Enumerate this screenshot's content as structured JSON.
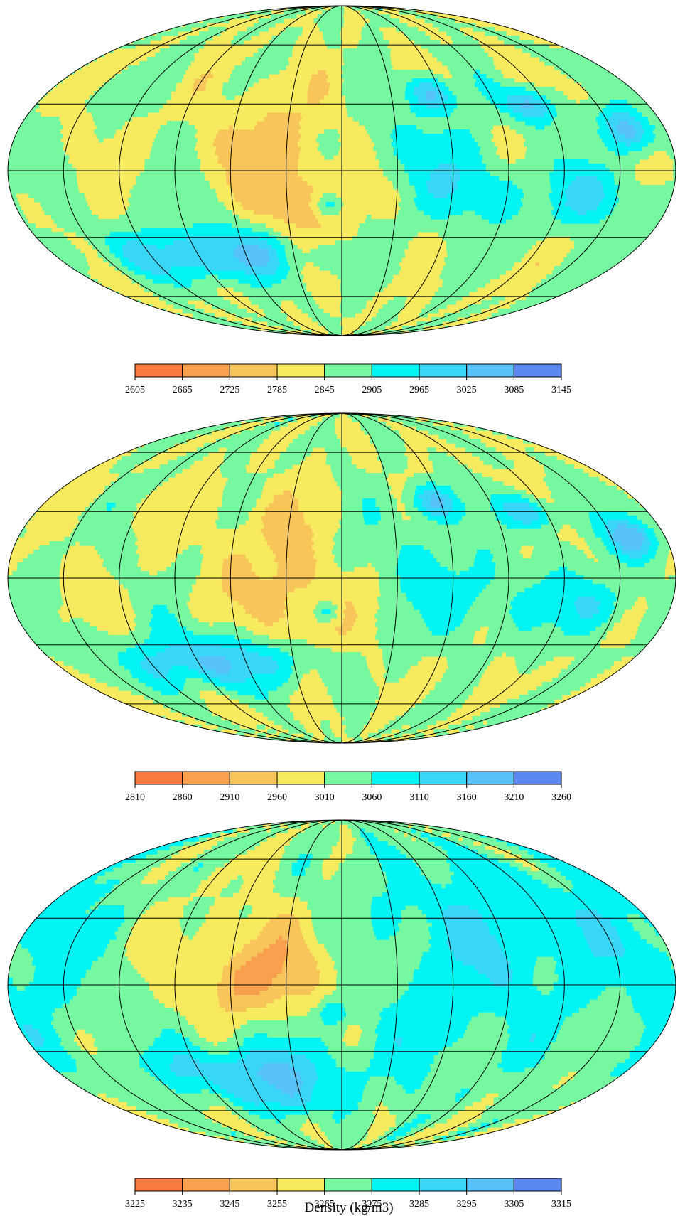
{
  "colors": [
    "#f87a3f",
    "#f8a04d",
    "#f8c55a",
    "#f8ea5e",
    "#76f8a0",
    "#00f4f4",
    "#3ad6f8",
    "#56c2f8",
    "#5a88f0"
  ],
  "outline_color": "#000000",
  "panels": [
    {
      "ticks": [
        "2605",
        "2665",
        "2725",
        "2785",
        "2845",
        "2905",
        "2965",
        "3025",
        "3085",
        "3145"
      ],
      "blobs": [
        {
          "lon": -40,
          "lat": 20,
          "sx": 25,
          "sy": 15,
          "a": 0.7
        },
        {
          "lon": -25,
          "lat": -20,
          "sx": 20,
          "sy": 12,
          "a": 1.1
        },
        {
          "lon": -30,
          "lat": 0,
          "sx": 18,
          "sy": 10,
          "a": 0.6
        },
        {
          "lon": -95,
          "lat": -40,
          "sx": 40,
          "sy": 9,
          "a": -1.3
        },
        {
          "lon": -60,
          "lat": -35,
          "sx": 35,
          "sy": 9,
          "a": -1.1
        },
        {
          "lon": -8,
          "lat": -15,
          "sx": 5,
          "sy": 4,
          "a": -1.6
        },
        {
          "lon": 55,
          "lat": 35,
          "sx": 10,
          "sy": 6,
          "a": -2.0
        },
        {
          "lon": 110,
          "lat": 30,
          "sx": 10,
          "sy": 6,
          "a": -2.1
        },
        {
          "lon": 160,
          "lat": 18,
          "sx": 10,
          "sy": 7,
          "a": -2.2
        },
        {
          "lon": 80,
          "lat": -10,
          "sx": 25,
          "sy": 12,
          "a": -1.0
        },
        {
          "lon": 140,
          "lat": -12,
          "sx": 15,
          "sy": 10,
          "a": -1.3
        },
        {
          "lon": 40,
          "lat": 10,
          "sx": 25,
          "sy": 15,
          "a": -0.7
        }
      ]
    },
    {
      "ticks": [
        "2810",
        "2860",
        "2910",
        "2960",
        "3010",
        "3060",
        "3110",
        "3160",
        "3210",
        "3260"
      ],
      "blobs": [
        {
          "lon": -40,
          "lat": 20,
          "sx": 25,
          "sy": 15,
          "a": 0.6
        },
        {
          "lon": -25,
          "lat": -20,
          "sx": 20,
          "sy": 12,
          "a": 1.0
        },
        {
          "lon": -30,
          "lat": 0,
          "sx": 18,
          "sy": 10,
          "a": 0.5
        },
        {
          "lon": -95,
          "lat": -40,
          "sx": 40,
          "sy": 9,
          "a": -1.2
        },
        {
          "lon": -60,
          "lat": -35,
          "sx": 35,
          "sy": 9,
          "a": -1.0
        },
        {
          "lon": -8,
          "lat": -15,
          "sx": 5,
          "sy": 4,
          "a": -1.5
        },
        {
          "lon": 55,
          "lat": 35,
          "sx": 10,
          "sy": 6,
          "a": -2.0
        },
        {
          "lon": 110,
          "lat": 30,
          "sx": 10,
          "sy": 6,
          "a": -2.1
        },
        {
          "lon": 160,
          "lat": 18,
          "sx": 10,
          "sy": 7,
          "a": -2.2
        },
        {
          "lon": 80,
          "lat": -10,
          "sx": 25,
          "sy": 12,
          "a": -0.9
        },
        {
          "lon": 140,
          "lat": -12,
          "sx": 15,
          "sy": 10,
          "a": -1.2
        },
        {
          "lon": 40,
          "lat": 10,
          "sx": 25,
          "sy": 15,
          "a": -0.6
        }
      ]
    },
    {
      "ticks": [
        "3225",
        "3235",
        "3245",
        "3255",
        "3265",
        "3275",
        "3285",
        "3295",
        "3305",
        "3315"
      ],
      "blobs": [
        {
          "lon": -40,
          "lat": 10,
          "sx": 30,
          "sy": 18,
          "a": 0.8
        },
        {
          "lon": -50,
          "lat": 0,
          "sx": 15,
          "sy": 8,
          "a": 0.6
        },
        {
          "lon": -20,
          "lat": 5,
          "sx": 35,
          "sy": 15,
          "a": 0.5
        },
        {
          "lon": -60,
          "lat": -40,
          "sx": 40,
          "sy": 10,
          "a": -1.8
        },
        {
          "lon": -40,
          "lat": -55,
          "sx": 20,
          "sy": 8,
          "a": -1.0
        },
        {
          "lon": 60,
          "lat": 10,
          "sx": 60,
          "sy": 45,
          "a": -1.0
        },
        {
          "lon": 120,
          "lat": 30,
          "sx": 40,
          "sy": 20,
          "a": -0.5
        },
        {
          "lon": -170,
          "lat": 10,
          "sx": 30,
          "sy": 40,
          "a": -0.8
        },
        {
          "lon": -5,
          "lat": -12,
          "sx": 6,
          "sy": 5,
          "a": -1.2
        }
      ]
    }
  ],
  "xlabel": "Density (kg/m3)"
}
